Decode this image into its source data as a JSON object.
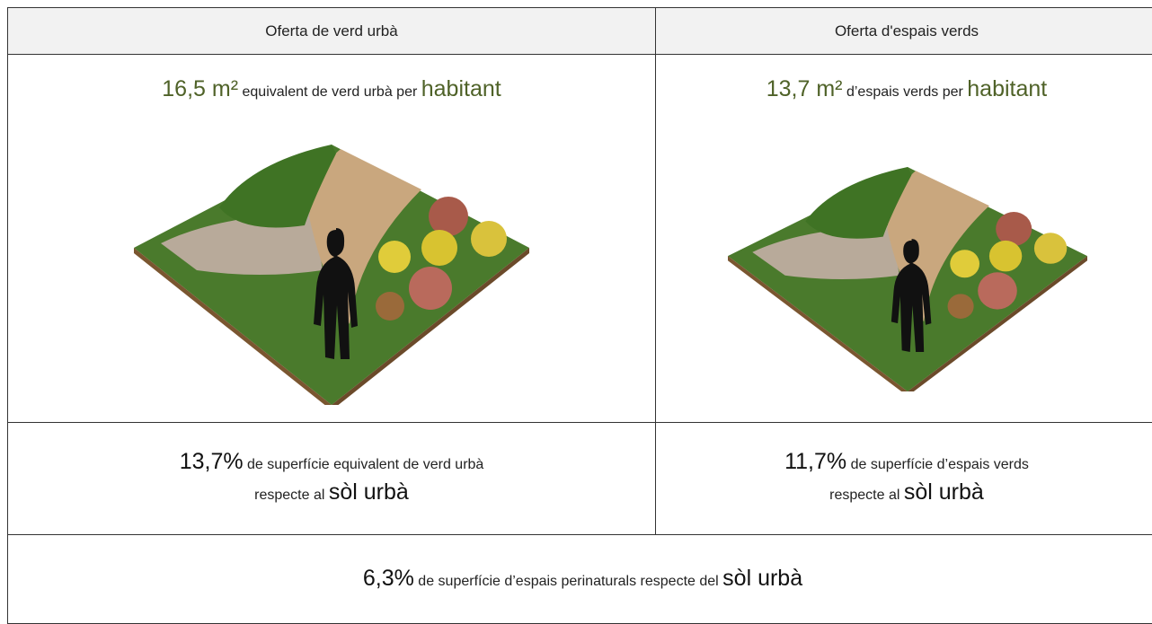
{
  "header": {
    "cells": [
      "Oferta de verd urbà",
      "Oferta d'espais verds"
    ]
  },
  "per_habitant": [
    {
      "value": "16,5 m²",
      "text": "equivalent de verd urbà per",
      "unit": "habitant"
    },
    {
      "value": "13,7 m²",
      "text": "d’espais verds per",
      "unit": "habitant"
    }
  ],
  "percentages": [
    {
      "value": "13,7%",
      "line1": "de superfície equivalent de verd urbà",
      "line2": "respecte al",
      "emphasis": "sòl urbà"
    },
    {
      "value": "11,7%",
      "line1": "de superfície d’espais verds",
      "line2": "respecte al",
      "emphasis": "sòl urbà"
    }
  ],
  "footer": {
    "value": "6,3%",
    "text": "de superfície d’espais perinaturals respecte del",
    "emphasis": "sòl urbà"
  }
}
